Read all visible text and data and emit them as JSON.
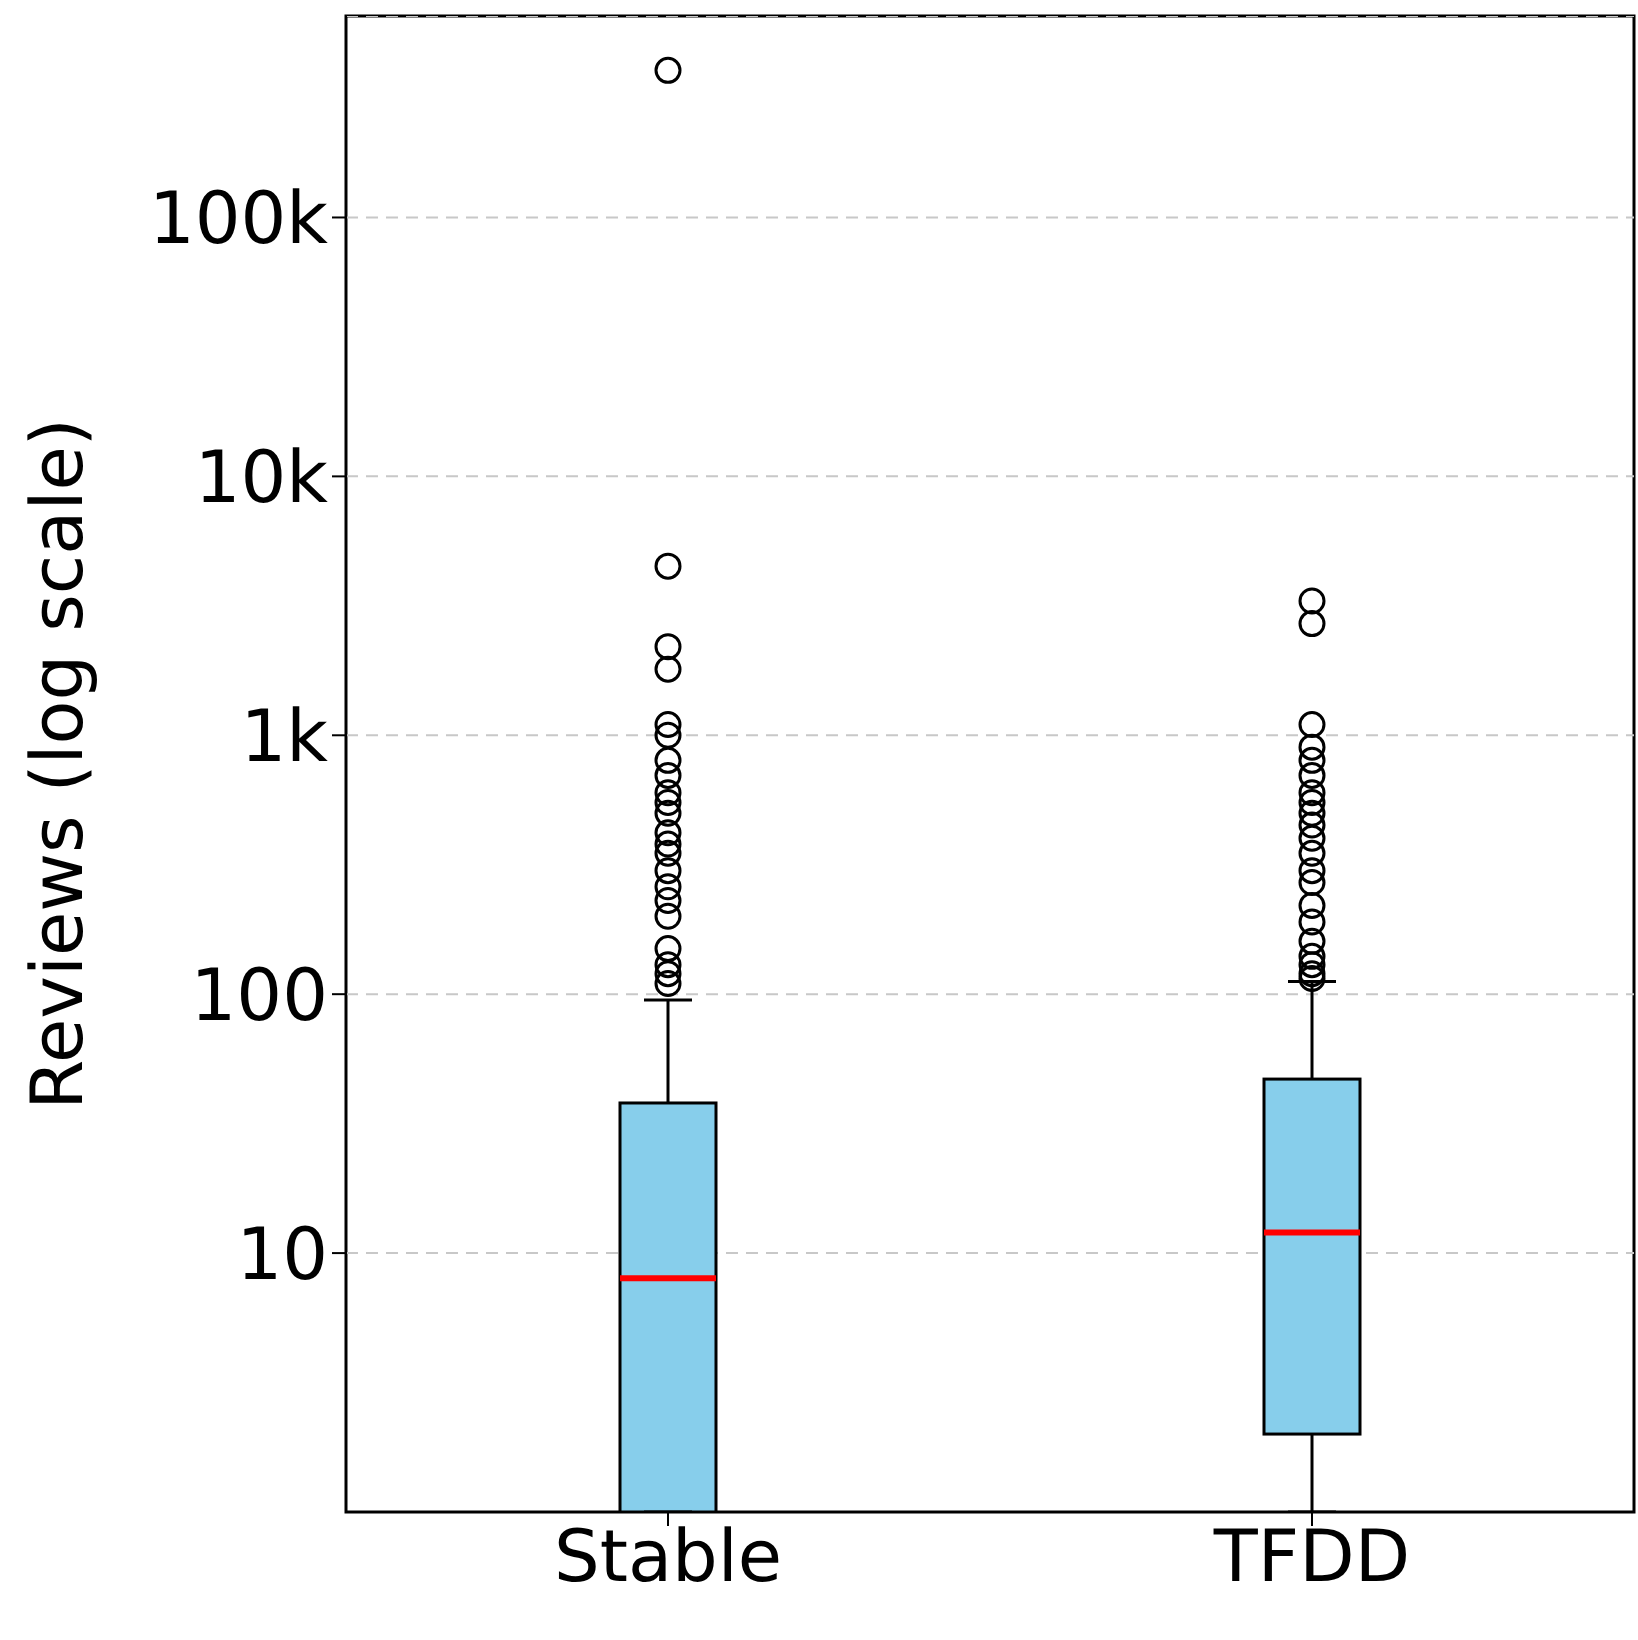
{
  "chart_data": {
    "type": "box",
    "ylabel": "Reviews (log scale)",
    "categories": [
      "Stable",
      "TFDD"
    ],
    "log": true,
    "ylim": [
      1,
      600000
    ],
    "yticks": [
      10,
      100,
      {
        "value": 1000,
        "label": "1k"
      },
      {
        "value": 10000,
        "label": "10k"
      },
      {
        "value": 100000,
        "label": "100k"
      }
    ],
    "grid": "y",
    "series": [
      {
        "color": "#87ceeb",
        "boxes": [
          {
            "low": 1,
            "q1": 1,
            "median": 8,
            "q3": 38,
            "high": 95,
            "outliers": [
              370000,
              4500,
              2200,
              1800,
              1100,
              1000,
              800,
              700,
              600,
              550,
              500,
              420,
              380,
              350,
              300,
              260,
              230,
              200,
              150,
              130,
              120,
              110
            ]
          },
          {
            "low": 1,
            "q1": 2,
            "median": 12,
            "q3": 47,
            "high": 112,
            "outliers": [
              3300,
              2700,
              1100,
              900,
              800,
              700,
              600,
              550,
              500,
              450,
              400,
              350,
              300,
              270,
              220,
              190,
              160,
              140,
              130,
              120,
              115
            ]
          }
        ]
      }
    ]
  }
}
